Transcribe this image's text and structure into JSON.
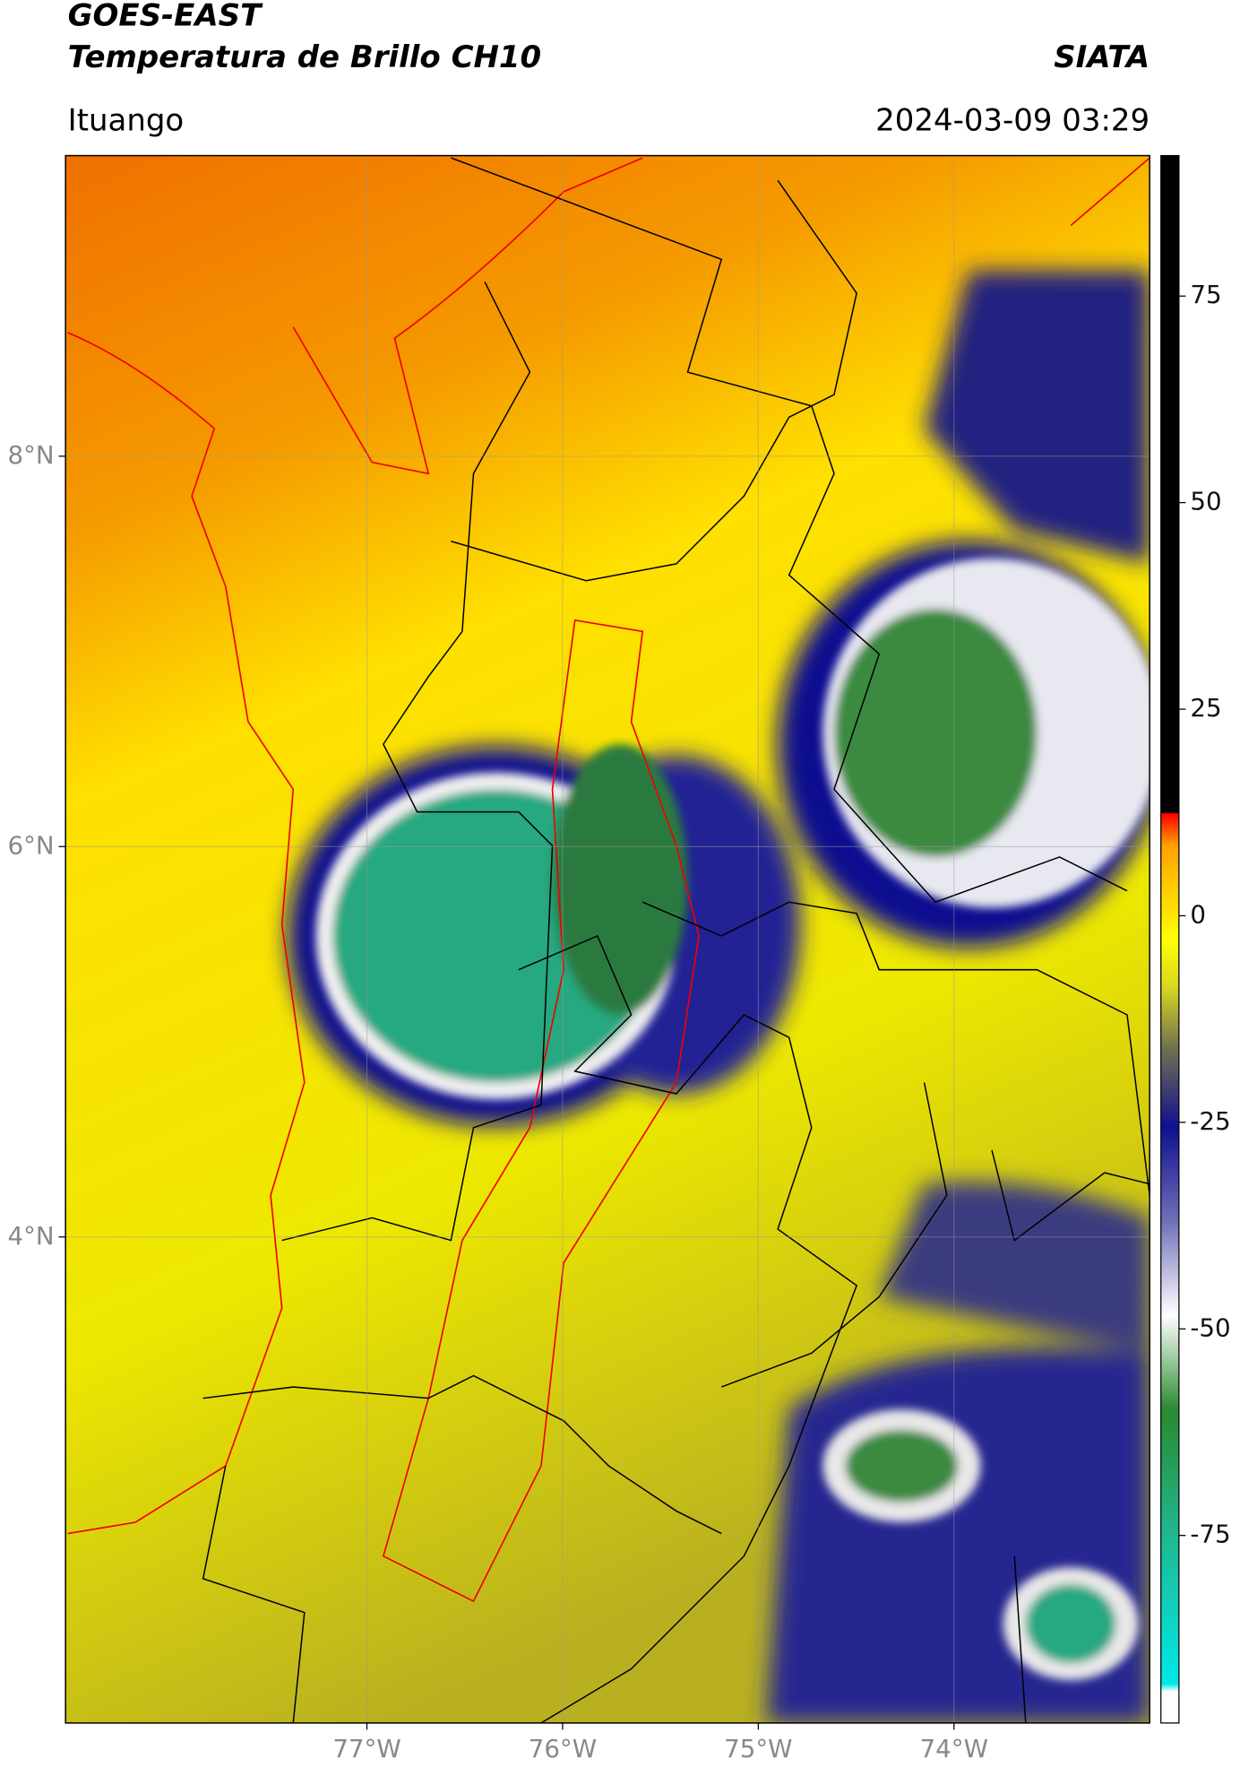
{
  "header": {
    "title": "GOES-EAST",
    "subtitle": "Temperatura de Brillo CH10",
    "source": "SIATA",
    "location": "Ituango",
    "timestamp": "2024-03-09 03:29"
  },
  "map": {
    "xlim": [
      -78.54,
      -73.0
    ],
    "ylim": [
      1.51,
      9.54
    ],
    "xticks": [
      {
        "value": -77,
        "label": "77°W"
      },
      {
        "value": -76,
        "label": "76°W"
      },
      {
        "value": -75,
        "label": "75°W"
      },
      {
        "value": -74,
        "label": "74°W"
      }
    ],
    "yticks": [
      {
        "value": 8,
        "label": "8°N"
      },
      {
        "value": 6,
        "label": "6°N"
      },
      {
        "value": 4,
        "label": "4°N"
      }
    ]
  },
  "colorbar": {
    "lim": [
      -97.7,
      92
    ],
    "ticks": [
      75,
      50,
      25,
      0,
      -25,
      -50,
      -75
    ]
  }
}
